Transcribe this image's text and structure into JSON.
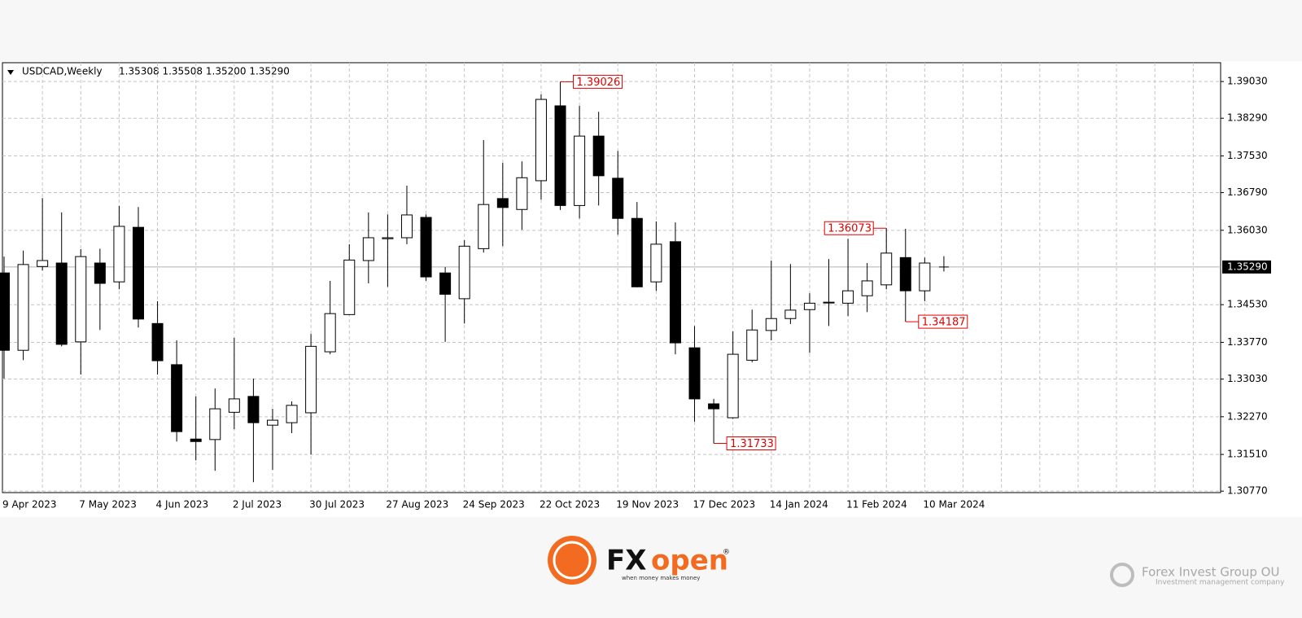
{
  "chart_data": {
    "type": "candlestick",
    "title": "USDCAD,Weekly",
    "subtitle": "1.35308 1.35508 1.35200 1.35290",
    "categories": [
      "9 Apr 2023",
      null,
      null,
      null,
      "7 May 2023",
      null,
      null,
      null,
      "4 Jun 2023",
      null,
      null,
      null,
      "2 Jul 2023",
      null,
      null,
      null,
      "30 Jul 2023",
      null,
      null,
      null,
      "27 Aug 2023",
      null,
      null,
      null,
      "24 Sep 2023",
      null,
      null,
      null,
      "22 Oct 2023",
      null,
      null,
      null,
      "19 Nov 2023",
      null,
      null,
      null,
      "17 Dec 2023",
      null,
      null,
      null,
      "14 Jan 2024",
      null,
      null,
      null,
      "11 Feb 2024",
      null,
      null,
      null,
      "10 Mar 2024",
      null
    ],
    "open": [
      1.3517,
      1.3361,
      1.353,
      1.3537,
      1.3378,
      1.3537,
      1.3499,
      1.3609,
      1.3415,
      1.3332,
      1.3182,
      1.3181,
      1.3236,
      1.3268,
      1.321,
      1.3215,
      1.3235,
      1.3358,
      1.3433,
      1.3542,
      1.3586,
      1.3588,
      1.3629,
      1.3517,
      1.3465,
      1.3566,
      1.3667,
      1.3645,
      1.3703,
      1.3854,
      1.3653,
      1.3793,
      1.3708,
      1.3627,
      1.3499,
      1.358,
      1.3366,
      1.3253,
      1.3225,
      1.3341,
      1.3401,
      1.3425,
      1.3443,
      1.3457,
      1.3456,
      1.3471,
      1.3493,
      1.3548,
      1.3481,
      1.35308
    ],
    "high": [
      1.355,
      1.3562,
      1.3668,
      1.3639,
      1.3565,
      1.3566,
      1.3652,
      1.365,
      1.346,
      1.3381,
      1.3268,
      1.3284,
      1.3386,
      1.3304,
      1.3243,
      1.3258,
      1.3394,
      1.3501,
      1.3575,
      1.3639,
      1.3635,
      1.3693,
      1.3635,
      1.3529,
      1.3583,
      1.3785,
      1.3739,
      1.3742,
      1.3877,
      1.39026,
      1.3854,
      1.3842,
      1.3763,
      1.366,
      1.3621,
      1.3619,
      1.341,
      1.3263,
      1.3399,
      1.3443,
      1.3542,
      1.3535,
      1.3476,
      1.3545,
      1.3586,
      1.3537,
      1.36073,
      1.3606,
      1.3548,
      1.35508
    ],
    "low": [
      1.3304,
      1.3341,
      1.3522,
      1.3369,
      1.3312,
      1.3402,
      1.3484,
      1.3407,
      1.3312,
      1.3177,
      1.3139,
      1.3118,
      1.3202,
      1.3095,
      1.312,
      1.3194,
      1.3151,
      1.3353,
      1.3432,
      1.3496,
      1.3489,
      1.3575,
      1.3501,
      1.3378,
      1.3415,
      1.3558,
      1.3571,
      1.3604,
      1.3665,
      1.3644,
      1.3627,
      1.3653,
      1.3594,
      1.3488,
      1.3481,
      1.3353,
      1.3217,
      1.31733,
      1.3223,
      1.3337,
      1.3381,
      1.3414,
      1.3356,
      1.341,
      1.343,
      1.3438,
      1.3484,
      1.34187,
      1.346,
      1.352
    ],
    "close": [
      1.3361,
      1.3534,
      1.3542,
      1.3373,
      1.355,
      1.3496,
      1.3611,
      1.3424,
      1.334,
      1.3197,
      1.3177,
      1.3243,
      1.3263,
      1.3215,
      1.322,
      1.325,
      1.3369,
      1.3435,
      1.3543,
      1.3588,
      1.3588,
      1.3634,
      1.3509,
      1.3474,
      1.3571,
      1.3655,
      1.3649,
      1.3709,
      1.3867,
      1.3653,
      1.3793,
      1.3713,
      1.3627,
      1.3489,
      1.3575,
      1.3376,
      1.3263,
      1.3243,
      1.3353,
      1.3402,
      1.3425,
      1.3442,
      1.3456,
      1.3458,
      1.3481,
      1.3501,
      1.3557,
      1.3481,
      1.3537,
      1.3529
    ],
    "up_color": "#ffffff",
    "down_color": "#000000",
    "ylim": [
      1.3074,
      1.3941
    ],
    "yticks": [
      {
        "value": 1.3077,
        "label": "1.30770"
      },
      {
        "value": 1.3151,
        "label": "1.31510"
      },
      {
        "value": 1.3227,
        "label": "1.32270"
      },
      {
        "value": 1.3303,
        "label": "1.33030"
      },
      {
        "value": 1.3377,
        "label": "1.33770"
      },
      {
        "value": 1.3453,
        "label": "1.34530"
      },
      {
        "value": 1.3603,
        "label": "1.36030"
      },
      {
        "value": 1.3679,
        "label": "1.36790"
      },
      {
        "value": 1.3753,
        "label": "1.37530"
      },
      {
        "value": 1.3829,
        "label": "1.38290"
      },
      {
        "value": 1.3903,
        "label": "1.39030"
      }
    ],
    "current_price": {
      "value": 1.3529,
      "label": "1.35290"
    },
    "annotations": [
      {
        "value": 1.39026,
        "label": "1.39026"
      },
      {
        "value": 1.36073,
        "label": "1.36073"
      },
      {
        "value": 1.34187,
        "label": "1.34187"
      },
      {
        "value": 1.31733,
        "label": "1.31733"
      }
    ],
    "grid": true
  },
  "branding": {
    "logo_part1": "FX",
    "logo_part2": "open",
    "registered": "®",
    "tagline": "when money makes money",
    "company": "Forex Invest Group OU",
    "company_tagline": "Investment management company"
  }
}
